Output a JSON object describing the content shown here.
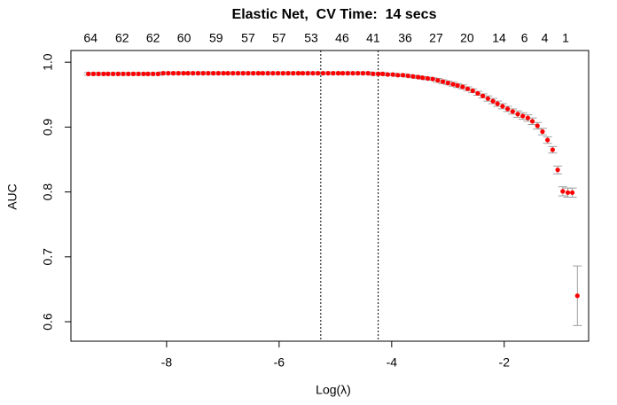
{
  "chart_data": {
    "type": "errorpoints",
    "title": "Elastic Net,  CV Time:  14 secs",
    "x_label": "Log(λ)",
    "y_label": "AUC",
    "xlim": [
      -9.7,
      -0.5
    ],
    "ylim": [
      0.57,
      1.018
    ],
    "xticks": [
      -8,
      -6,
      -4,
      -2
    ],
    "yticks": [
      0.6,
      0.7,
      0.8,
      0.9,
      {
        "value": 1,
        "label": "1.0"
      }
    ],
    "top_ticks": [
      {
        "value": -9.35,
        "label": "64"
      },
      {
        "value": -8.79,
        "label": "62"
      },
      {
        "value": -8.24,
        "label": "62"
      },
      {
        "value": -7.69,
        "label": "60"
      },
      {
        "value": -7.12,
        "label": "59"
      },
      {
        "value": -6.55,
        "label": "57"
      },
      {
        "value": -6.0,
        "label": "57"
      },
      {
        "value": -5.43,
        "label": "53"
      },
      {
        "value": -4.88,
        "label": "46"
      },
      {
        "value": -4.33,
        "label": "41"
      },
      {
        "value": -3.76,
        "label": "36"
      },
      {
        "value": -3.21,
        "label": "27"
      },
      {
        "value": -2.66,
        "label": "20"
      },
      {
        "value": -2.09,
        "label": "14"
      },
      {
        "value": -1.64,
        "label": "6"
      },
      {
        "value": -1.28,
        "label": "4"
      },
      {
        "value": -0.91,
        "label": "1"
      }
    ],
    "vlines": [
      -5.26,
      -4.24
    ],
    "color": "#ff0000",
    "error_color": "#a0a0a0",
    "x": [
      -9.39,
      -9.3,
      -9.21,
      -9.12,
      -9.04,
      -8.95,
      -8.86,
      -8.77,
      -8.68,
      -8.59,
      -8.5,
      -8.41,
      -8.33,
      -8.24,
      -8.15,
      -8.06,
      -7.97,
      -7.88,
      -7.79,
      -7.7,
      -7.62,
      -7.53,
      -7.44,
      -7.35,
      -7.26,
      -7.17,
      -7.08,
      -6.99,
      -6.91,
      -6.82,
      -6.73,
      -6.64,
      -6.55,
      -6.46,
      -6.37,
      -6.29,
      -6.2,
      -6.11,
      -6.02,
      -5.93,
      -5.84,
      -5.75,
      -5.66,
      -5.58,
      -5.49,
      -5.4,
      -5.31,
      -5.22,
      -5.13,
      -5.04,
      -4.95,
      -4.87,
      -4.78,
      -4.69,
      -4.6,
      -4.51,
      -4.42,
      -4.33,
      -4.24,
      -4.16,
      -4.07,
      -3.98,
      -3.89,
      -3.8,
      -3.71,
      -3.62,
      -3.53,
      -3.45,
      -3.36,
      -3.27,
      -3.18,
      -3.09,
      -3.0,
      -2.91,
      -2.83,
      -2.74,
      -2.65,
      -2.56,
      -2.47,
      -2.38,
      -2.29,
      -2.2,
      -2.12,
      -2.03,
      -1.94,
      -1.85,
      -1.76,
      -1.67,
      -1.58,
      -1.5,
      -1.41,
      -1.32,
      -1.23,
      -1.14,
      -1.05,
      -0.96,
      -0.87,
      -0.79,
      -0.7
    ],
    "values": [
      0.982,
      0.982,
      0.982,
      0.982,
      0.982,
      0.982,
      0.982,
      0.982,
      0.982,
      0.982,
      0.982,
      0.982,
      0.982,
      0.982,
      0.982,
      0.983,
      0.983,
      0.983,
      0.983,
      0.983,
      0.983,
      0.983,
      0.983,
      0.983,
      0.983,
      0.983,
      0.983,
      0.983,
      0.983,
      0.983,
      0.983,
      0.983,
      0.983,
      0.983,
      0.983,
      0.983,
      0.983,
      0.983,
      0.983,
      0.983,
      0.983,
      0.983,
      0.983,
      0.983,
      0.983,
      0.983,
      0.983,
      0.983,
      0.983,
      0.983,
      0.983,
      0.983,
      0.983,
      0.983,
      0.983,
      0.983,
      0.983,
      0.982,
      0.982,
      0.982,
      0.981,
      0.981,
      0.98,
      0.98,
      0.979,
      0.978,
      0.977,
      0.976,
      0.975,
      0.974,
      0.972,
      0.97,
      0.968,
      0.966,
      0.964,
      0.962,
      0.959,
      0.956,
      0.952,
      0.948,
      0.944,
      0.94,
      0.936,
      0.932,
      0.928,
      0.924,
      0.92,
      0.917,
      0.914,
      0.909,
      0.902,
      0.893,
      0.88,
      0.865,
      0.834,
      0.801,
      0.799,
      0.799,
      0.64
    ],
    "errors": [
      0.002,
      0.002,
      0.002,
      0.002,
      0.002,
      0.002,
      0.002,
      0.002,
      0.002,
      0.002,
      0.002,
      0.002,
      0.002,
      0.002,
      0.002,
      0.002,
      0.002,
      0.002,
      0.002,
      0.002,
      0.002,
      0.002,
      0.002,
      0.002,
      0.002,
      0.002,
      0.002,
      0.002,
      0.002,
      0.002,
      0.002,
      0.002,
      0.002,
      0.002,
      0.002,
      0.002,
      0.002,
      0.002,
      0.002,
      0.002,
      0.002,
      0.002,
      0.002,
      0.002,
      0.002,
      0.002,
      0.002,
      0.002,
      0.002,
      0.002,
      0.002,
      0.002,
      0.002,
      0.002,
      0.002,
      0.002,
      0.002,
      0.002,
      0.002,
      0.002,
      0.002,
      0.002,
      0.002,
      0.002,
      0.002,
      0.002,
      0.002,
      0.002,
      0.002,
      0.002,
      0.003,
      0.003,
      0.003,
      0.003,
      0.003,
      0.003,
      0.003,
      0.003,
      0.003,
      0.003,
      0.004,
      0.004,
      0.004,
      0.004,
      0.004,
      0.004,
      0.005,
      0.005,
      0.005,
      0.005,
      0.005,
      0.005,
      0.005,
      0.005,
      0.006,
      0.007,
      0.007,
      0.007,
      0.046
    ]
  }
}
